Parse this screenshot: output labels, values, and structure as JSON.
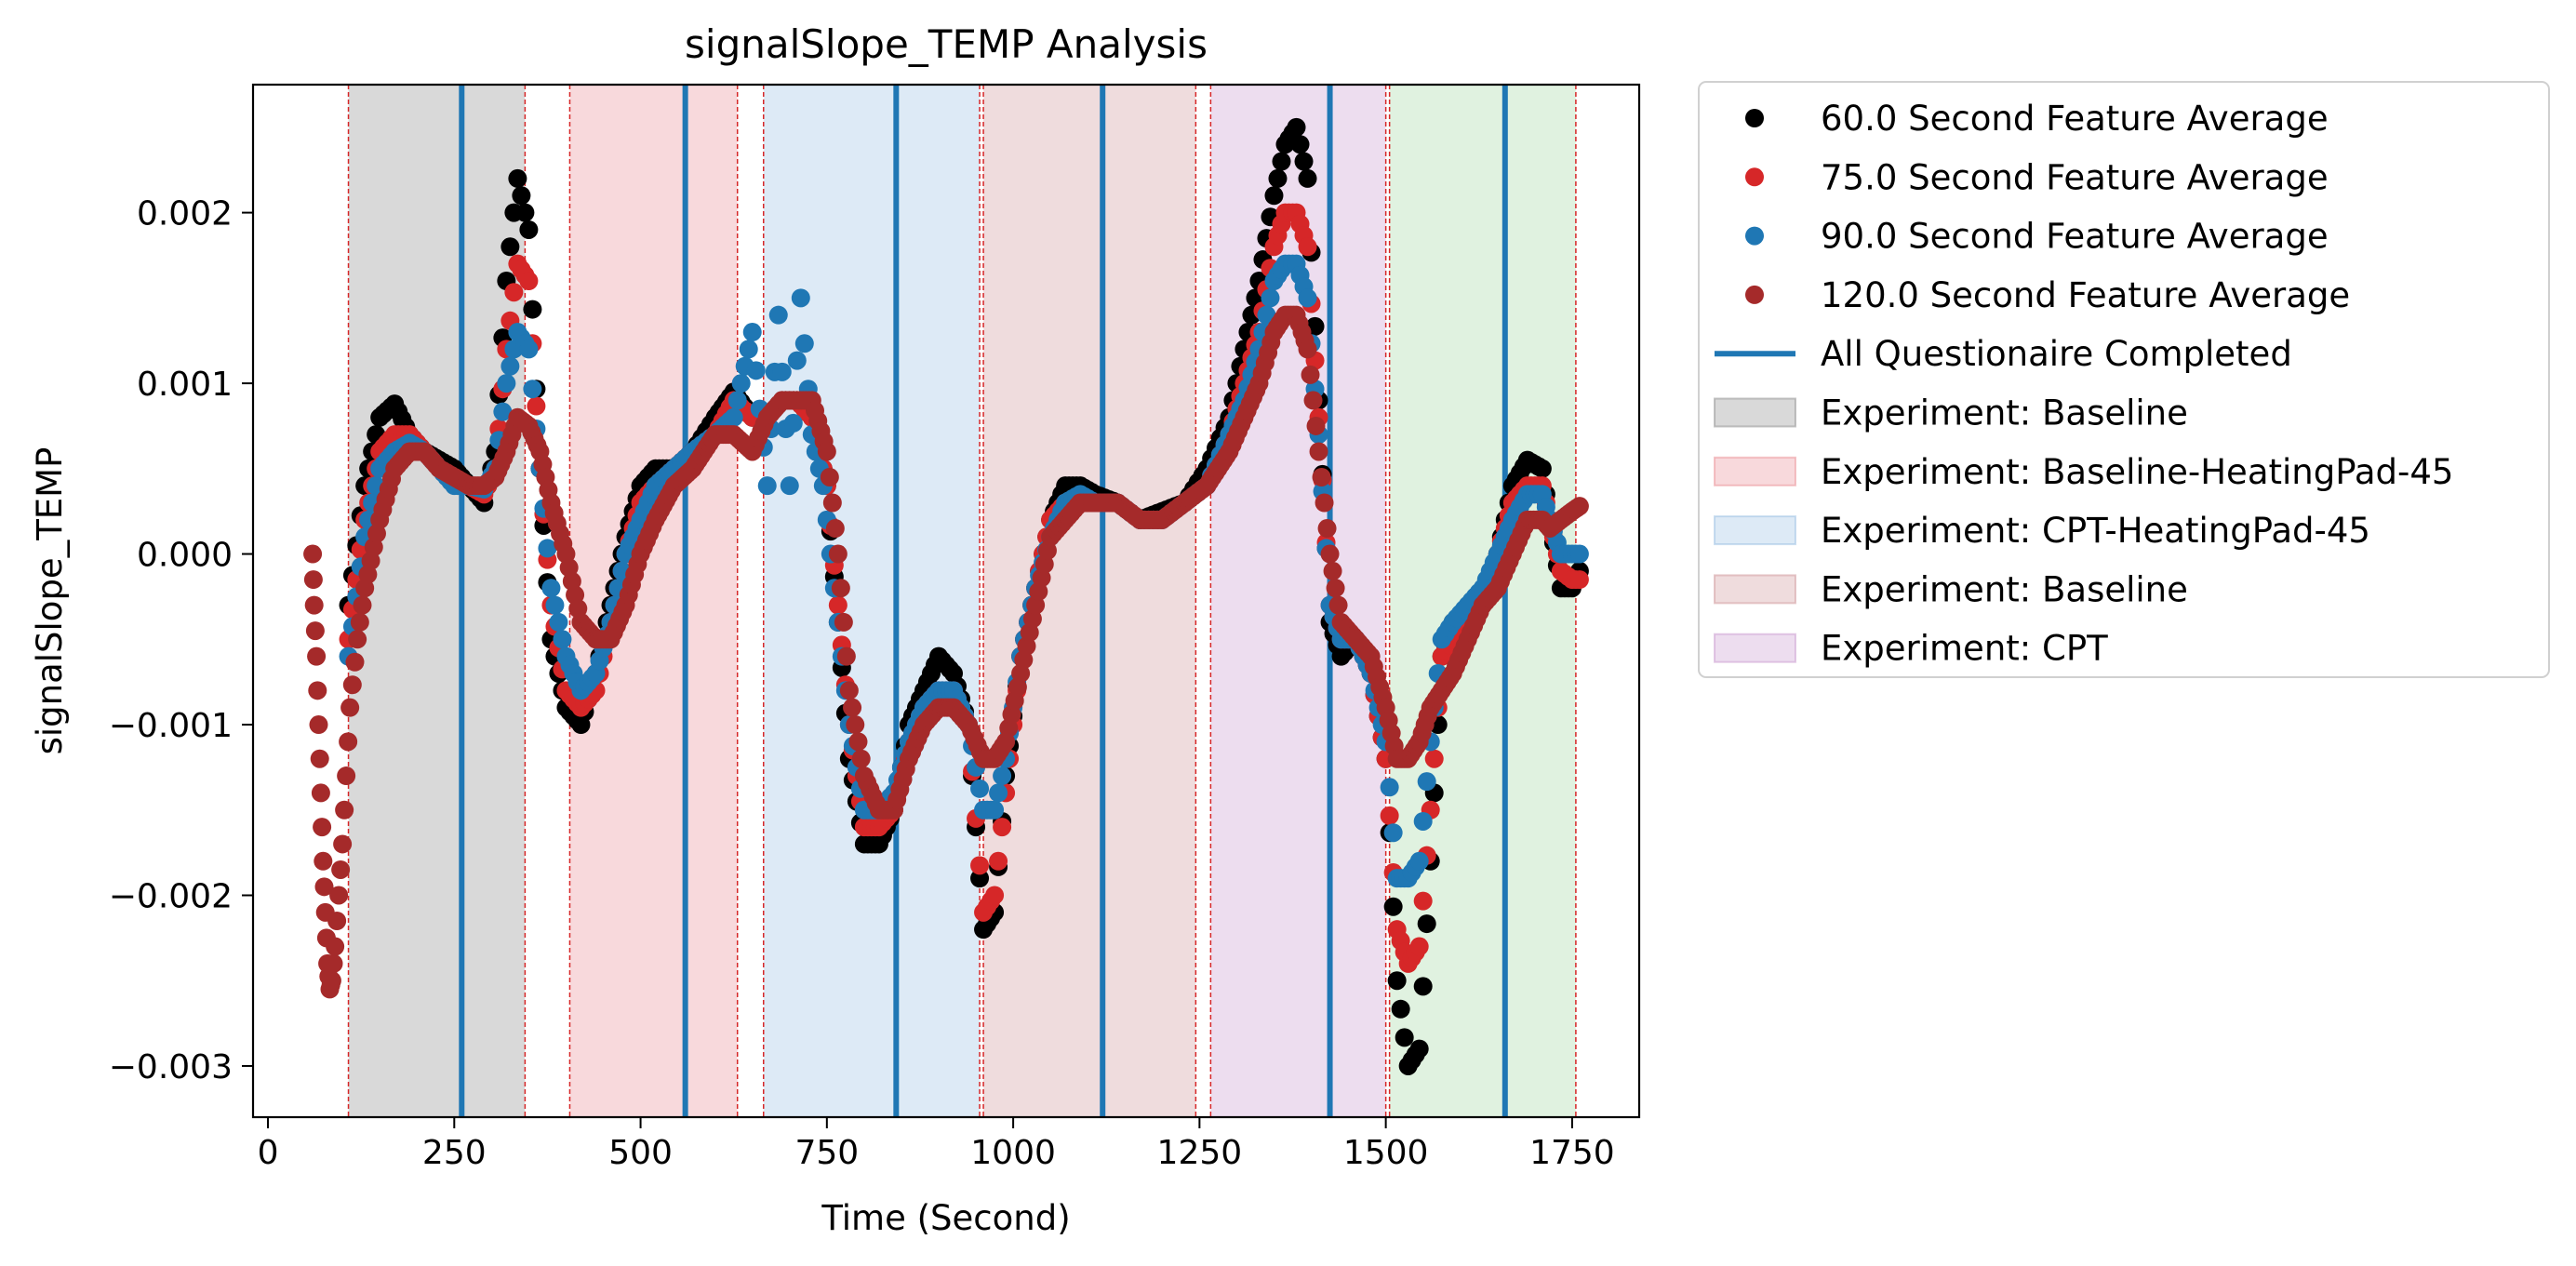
{
  "chart_data": {
    "type": "scatter",
    "title": "signalSlope_TEMP Analysis",
    "xlabel": "Time (Second)",
    "ylabel": "signalSlope_TEMP",
    "xlim": [
      -20,
      1840
    ],
    "ylim": [
      -0.0033,
      0.00275
    ],
    "x_ticks": [
      0,
      250,
      500,
      750,
      1000,
      1250,
      1500,
      1750
    ],
    "x_tick_labels": [
      "0",
      "250",
      "500",
      "750",
      "1000",
      "1250",
      "1500",
      "1750"
    ],
    "y_ticks": [
      0.002,
      0.001,
      0.0,
      -0.001,
      -0.002,
      -0.003
    ],
    "y_tick_labels": [
      "0.002",
      "0.001",
      "0.000",
      "−0.001",
      "−0.002",
      "−0.003"
    ],
    "grid": false,
    "legend_position": "outside right",
    "legend": [
      {
        "label": "60.0 Second Feature Average",
        "kind": "marker",
        "color": "#000000"
      },
      {
        "label": "75.0 Second Feature Average",
        "kind": "marker",
        "color": "#d62728"
      },
      {
        "label": "90.0 Second Feature Average",
        "kind": "marker",
        "color": "#1f77b4"
      },
      {
        "label": "120.0 Second Feature Average",
        "kind": "marker",
        "color": "#a52a2a"
      },
      {
        "label": "All Questionaire Completed",
        "kind": "line",
        "color": "#1f77b4"
      },
      {
        "label": "Experiment: Baseline",
        "kind": "patch",
        "color": "#808080"
      },
      {
        "label": "Experiment: Baseline-HeatingPad-45",
        "kind": "patch",
        "color": "#e8828a"
      },
      {
        "label": "Experiment: CPT-HeatingPad-45",
        "kind": "patch",
        "color": "#8fb8e0"
      },
      {
        "label": "Experiment: Baseline",
        "kind": "patch",
        "color": "#c98a8f"
      },
      {
        "label": "Experiment: CPT",
        "kind": "patch",
        "color": "#c48fca"
      }
    ],
    "regions": [
      {
        "name": "Experiment: Baseline",
        "start": 108,
        "end": 345,
        "color": "#808080"
      },
      {
        "name": "Experiment: Baseline-HeatingPad-45",
        "start": 405,
        "end": 630,
        "color": "#e8828a"
      },
      {
        "name": "Experiment: CPT-HeatingPad-45",
        "start": 665,
        "end": 955,
        "color": "#8fb8e0"
      },
      {
        "name": "Experiment: Baseline",
        "start": 960,
        "end": 1245,
        "color": "#c98a8f"
      },
      {
        "name": "Experiment: CPT",
        "start": 1265,
        "end": 1500,
        "color": "#c48fca"
      },
      {
        "name": "",
        "start": 1505,
        "end": 1755,
        "color": "#98d498"
      }
    ],
    "region_edges": [
      108,
      345,
      405,
      630,
      665,
      955,
      960,
      1245,
      1265,
      1500,
      1505,
      1755
    ],
    "questionnaire_completed": [
      260,
      560,
      843,
      1120,
      1425,
      1660
    ],
    "series": [
      {
        "name": "60.0 Second Feature Average",
        "color": "#000000",
        "x": [
          108,
          130,
          150,
          170,
          190,
          210,
          230,
          250,
          270,
          290,
          305,
          320,
          335,
          350,
          365,
          380,
          400,
          420,
          440,
          460,
          480,
          500,
          520,
          545,
          570,
          600,
          625,
          650,
          670,
          690,
          710,
          730,
          750,
          765,
          780,
          800,
          820,
          840,
          860,
          880,
          900,
          920,
          940,
          960,
          975,
          990,
          1010,
          1030,
          1050,
          1070,
          1090,
          1110,
          1140,
          1170,
          1200,
          1230,
          1260,
          1290,
          1310,
          1330,
          1350,
          1365,
          1380,
          1395,
          1410,
          1425,
          1440,
          1460,
          1480,
          1500,
          1515,
          1530,
          1545,
          1560,
          1575,
          1590,
          1610,
          1630,
          1650,
          1670,
          1690,
          1710,
          1720,
          1735,
          1750,
          1760
        ],
        "y": [
          -0.0003,
          0.0004,
          0.0008,
          0.00088,
          0.0007,
          0.0006,
          0.00055,
          0.0005,
          0.0004,
          0.0003,
          0.0006,
          0.0016,
          0.0022,
          0.0019,
          0.0005,
          -0.0005,
          -0.0009,
          -0.001,
          -0.0007,
          -0.0003,
          0.0001,
          0.0004,
          0.0005,
          0.0005,
          0.0006,
          0.0008,
          0.00095,
          0.0008,
          0.0008,
          0.0009,
          0.0009,
          0.0008,
          0.0004,
          -0.0004,
          -0.0012,
          -0.0017,
          -0.0017,
          -0.0015,
          -0.001,
          -0.0008,
          -0.0006,
          -0.0007,
          -0.001,
          -0.0022,
          -0.0021,
          -0.0013,
          -0.0006,
          -0.0002,
          0.0002,
          0.0004,
          0.0004,
          0.00035,
          0.0003,
          0.0002,
          0.00025,
          0.0003,
          0.0005,
          0.0008,
          0.0012,
          0.0016,
          0.0021,
          0.0024,
          0.0025,
          0.0022,
          0.0009,
          -0.0004,
          -0.0006,
          -0.0005,
          -0.0007,
          -0.0012,
          -0.0025,
          -0.003,
          -0.0029,
          -0.0018,
          -0.0006,
          -0.0004,
          -0.0004,
          -0.0003,
          0.0,
          0.0004,
          0.00055,
          0.0005,
          0.0002,
          -0.0002,
          -0.0002,
          -0.0001
        ]
      },
      {
        "name": "75.0 Second Feature Average",
        "color": "#d62728",
        "x": [
          108,
          130,
          150,
          170,
          190,
          210,
          230,
          250,
          270,
          290,
          305,
          320,
          335,
          350,
          365,
          380,
          400,
          420,
          440,
          460,
          480,
          500,
          520,
          545,
          570,
          600,
          625,
          650,
          670,
          690,
          710,
          730,
          750,
          765,
          780,
          800,
          820,
          840,
          860,
          880,
          900,
          920,
          940,
          960,
          975,
          990,
          1010,
          1030,
          1050,
          1070,
          1090,
          1110,
          1140,
          1170,
          1200,
          1230,
          1260,
          1290,
          1310,
          1330,
          1350,
          1365,
          1380,
          1395,
          1410,
          1425,
          1440,
          1460,
          1480,
          1500,
          1515,
          1530,
          1545,
          1560,
          1575,
          1590,
          1610,
          1630,
          1650,
          1670,
          1690,
          1710,
          1720,
          1735,
          1750,
          1760
        ],
        "y": [
          -0.0005,
          0.0002,
          0.0006,
          0.0007,
          0.0007,
          0.0006,
          0.0005,
          0.00045,
          0.0004,
          0.00035,
          0.0005,
          0.0012,
          0.0017,
          0.0016,
          0.0005,
          -0.0003,
          -0.0008,
          -0.0009,
          -0.0008,
          -0.0004,
          0.0,
          0.0003,
          0.0004,
          0.0005,
          0.0006,
          0.0007,
          0.0009,
          0.0008,
          0.0008,
          0.0009,
          0.0009,
          0.0008,
          0.0004,
          -0.0003,
          -0.001,
          -0.0016,
          -0.0016,
          -0.0015,
          -0.0011,
          -0.0009,
          -0.0008,
          -0.0008,
          -0.001,
          -0.0021,
          -0.002,
          -0.0014,
          -0.0006,
          -0.0002,
          0.0002,
          0.0003,
          0.0003,
          0.0003,
          0.0003,
          0.0002,
          0.0002,
          0.0003,
          0.0004,
          0.0007,
          0.001,
          0.0013,
          0.0018,
          0.002,
          0.002,
          0.0018,
          0.0008,
          -0.0003,
          -0.0005,
          -0.0005,
          -0.0007,
          -0.0012,
          -0.0022,
          -0.0024,
          -0.0023,
          -0.0015,
          -0.0006,
          -0.0005,
          -0.0004,
          -0.0003,
          0.0,
          0.0003,
          0.0004,
          0.0004,
          0.0002,
          -0.0001,
          -0.00015,
          -0.00015
        ]
      },
      {
        "name": "90.0 Second Feature Average",
        "color": "#1f77b4",
        "x": [
          108,
          130,
          150,
          170,
          190,
          210,
          230,
          250,
          270,
          290,
          305,
          320,
          335,
          350,
          365,
          380,
          400,
          420,
          440,
          460,
          480,
          500,
          520,
          545,
          570,
          600,
          625,
          650,
          670,
          685,
          700,
          715,
          730,
          745,
          765,
          780,
          800,
          820,
          840,
          860,
          880,
          900,
          920,
          940,
          960,
          975,
          990,
          1010,
          1030,
          1050,
          1070,
          1090,
          1110,
          1140,
          1170,
          1200,
          1230,
          1260,
          1290,
          1310,
          1330,
          1350,
          1365,
          1380,
          1395,
          1410,
          1425,
          1440,
          1460,
          1480,
          1500,
          1515,
          1530,
          1545,
          1560,
          1575,
          1590,
          1610,
          1630,
          1650,
          1670,
          1690,
          1710,
          1720,
          1735,
          1750,
          1760
        ],
        "y": [
          -0.0006,
          0.0001,
          0.0005,
          0.0006,
          0.00065,
          0.0006,
          0.0005,
          0.0004,
          0.0004,
          0.00038,
          0.0005,
          0.001,
          0.0013,
          0.0012,
          0.0005,
          -0.0002,
          -0.0006,
          -0.0008,
          -0.0007,
          -0.0004,
          0.0,
          0.0002,
          0.0004,
          0.0005,
          0.0006,
          0.0007,
          0.0008,
          0.0013,
          0.0004,
          0.0014,
          0.0004,
          0.0015,
          0.0007,
          0.0004,
          -0.0004,
          -0.001,
          -0.0015,
          -0.0015,
          -0.0014,
          -0.0011,
          -0.0009,
          -0.0008,
          -0.0008,
          -0.001,
          -0.0015,
          -0.0015,
          -0.0012,
          -0.0006,
          -0.0002,
          0.0001,
          0.0003,
          0.00035,
          0.0003,
          0.0003,
          0.0002,
          0.0002,
          0.0003,
          0.0004,
          0.0007,
          0.0009,
          0.0012,
          0.0016,
          0.0017,
          0.0017,
          0.0015,
          0.0007,
          -0.0003,
          -0.0005,
          -0.0005,
          -0.0007,
          -0.0011,
          -0.0019,
          -0.0019,
          -0.0018,
          -0.0011,
          -0.0005,
          -0.0004,
          -0.0003,
          -0.0002,
          0.0,
          0.0002,
          0.00035,
          0.00035,
          0.0002,
          0.0,
          0.0,
          0.0
        ]
      },
      {
        "name": "120.0 Second Feature Average",
        "color": "#a52a2a",
        "x": [
          60,
          62,
          65,
          68,
          71,
          74,
          77,
          80,
          83,
          86,
          90,
          95,
          100,
          105,
          110,
          120,
          130,
          150,
          170,
          190,
          210,
          230,
          250,
          270,
          290,
          305,
          320,
          335,
          350,
          365,
          380,
          400,
          420,
          440,
          460,
          480,
          500,
          520,
          545,
          570,
          600,
          625,
          650,
          670,
          690,
          710,
          730,
          750,
          765,
          780,
          800,
          820,
          840,
          860,
          880,
          900,
          920,
          940,
          960,
          975,
          990,
          1010,
          1030,
          1050,
          1070,
          1090,
          1110,
          1140,
          1170,
          1200,
          1230,
          1260,
          1290,
          1310,
          1330,
          1350,
          1365,
          1380,
          1395,
          1410,
          1425,
          1440,
          1460,
          1480,
          1500,
          1515,
          1530,
          1545,
          1560,
          1575,
          1590,
          1610,
          1630,
          1650,
          1670,
          1690,
          1710,
          1720,
          1735,
          1750,
          1760
        ],
        "y": [
          0.0,
          -0.0003,
          -0.0006,
          -0.001,
          -0.0014,
          -0.0018,
          -0.0021,
          -0.0024,
          -0.00255,
          -0.0025,
          -0.0023,
          -0.002,
          -0.0017,
          -0.0013,
          -0.0009,
          -0.0005,
          -0.0002,
          0.0002,
          0.0005,
          0.0006,
          0.0006,
          0.0005,
          0.00045,
          0.0004,
          0.0004,
          0.00045,
          0.0006,
          0.0008,
          0.00075,
          0.0006,
          0.0003,
          0.0,
          -0.0004,
          -0.0005,
          -0.0005,
          -0.0003,
          0.0,
          0.0002,
          0.0004,
          0.0005,
          0.0007,
          0.0007,
          0.0006,
          0.0008,
          0.0009,
          0.0009,
          0.0009,
          0.0006,
          0.0,
          -0.0008,
          -0.0013,
          -0.0015,
          -0.0015,
          -0.0012,
          -0.001,
          -0.0009,
          -0.0009,
          -0.001,
          -0.0012,
          -0.0012,
          -0.0011,
          -0.0007,
          -0.0003,
          0.0001,
          0.0002,
          0.0003,
          0.0003,
          0.0003,
          0.0002,
          0.0002,
          0.0003,
          0.0004,
          0.0006,
          0.0008,
          0.001,
          0.0013,
          0.0014,
          0.0014,
          0.0012,
          0.0006,
          0.0,
          -0.0004,
          -0.0005,
          -0.0006,
          -0.0009,
          -0.0012,
          -0.0012,
          -0.0011,
          -0.0009,
          -0.0008,
          -0.0007,
          -0.0005,
          -0.0003,
          -0.0002,
          0.0,
          0.0002,
          0.0002,
          0.00015,
          0.0002,
          0.00025,
          0.00028
        ]
      }
    ]
  }
}
